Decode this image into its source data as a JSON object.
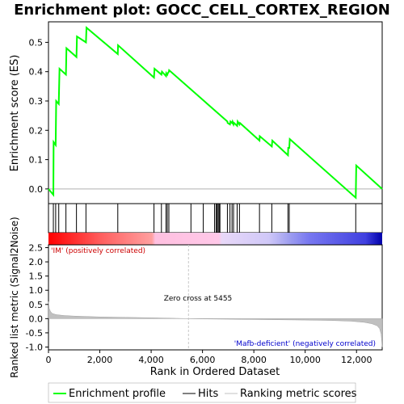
{
  "chart_data": {
    "type": "line",
    "title": "Enrichment plot: GOCC_CELL_CORTEX_REGION",
    "top_panel": {
      "ylabel": "Enrichment score (ES)",
      "ylim": [
        -0.05,
        0.57
      ],
      "yticks": [
        0.0,
        0.1,
        0.2,
        0.3,
        0.4,
        0.5
      ],
      "ytick_labels": [
        "0.0",
        "0.1",
        "0.2",
        "0.3",
        "0.4",
        "0.5"
      ],
      "series": [
        {
          "name": "Enrichment profile",
          "color": "#00ff00",
          "x": [
            0,
            190,
            200,
            280,
            300,
            400,
            430,
            680,
            700,
            1090,
            1110,
            1460,
            1480,
            2700,
            2710,
            4110,
            4130,
            4400,
            4420,
            4580,
            4590,
            4630,
            4650,
            4690,
            4700,
            6970,
            6980,
            7070,
            7090,
            7150,
            7170,
            7210,
            7230,
            7350,
            7370,
            7440,
            7460,
            8220,
            8230,
            8700,
            8720,
            9330,
            9340,
            9380,
            9400,
            11970,
            11990,
            13000
          ],
          "y": [
            0.0,
            -0.02,
            0.16,
            0.15,
            0.3,
            0.29,
            0.41,
            0.39,
            0.48,
            0.45,
            0.52,
            0.5,
            0.55,
            0.46,
            0.49,
            0.38,
            0.41,
            0.39,
            0.4,
            0.385,
            0.395,
            0.39,
            0.395,
            0.4,
            0.405,
            0.23,
            0.225,
            0.22,
            0.23,
            0.225,
            0.23,
            0.22,
            0.225,
            0.215,
            0.23,
            0.22,
            0.225,
            0.165,
            0.18,
            0.145,
            0.165,
            0.115,
            0.14,
            0.14,
            0.17,
            -0.03,
            0.08,
            0.0
          ]
        }
      ]
    },
    "hits": {
      "name": "Hits",
      "positions": [
        190,
        280,
        400,
        680,
        1090,
        1460,
        2700,
        4110,
        4400,
        4580,
        4630,
        4690,
        5550,
        6030,
        6470,
        6530,
        6570,
        6610,
        6650,
        6680,
        6970,
        7070,
        7150,
        7210,
        7350,
        7440,
        8220,
        8700,
        9330,
        9380,
        11970
      ]
    },
    "bottom_panel": {
      "ylabel": "Ranked list metric (Signal2Noise)",
      "xlabel": "Rank in Ordered Dataset",
      "ylim": [
        -1.1,
        2.6
      ],
      "yticks": [
        -1.0,
        -0.5,
        0.0,
        0.5,
        1.0,
        1.5,
        2.0,
        2.5
      ],
      "ytick_labels": [
        "-1.0",
        "-0.5",
        "0.0",
        "0.5",
        "1.0",
        "1.5",
        "2.0",
        "2.5"
      ],
      "xlim": [
        0,
        13000
      ],
      "xticks": [
        0,
        2000,
        4000,
        6000,
        8000,
        10000,
        12000
      ],
      "xtick_labels": [
        "0",
        "2,000",
        "4,000",
        "6,000",
        "8,000",
        "10,000",
        "12,000"
      ],
      "metric_profile": {
        "name": "Ranking metric scores",
        "x": [
          0,
          30,
          80,
          150,
          300,
          600,
          1000,
          2000,
          3000,
          4000,
          5000,
          5455,
          6000,
          7000,
          8000,
          9000,
          10000,
          11000,
          11800,
          12300,
          12600,
          12800,
          12900,
          12960,
          13000
        ],
        "y": [
          0.6,
          0.35,
          0.25,
          0.18,
          0.14,
          0.11,
          0.09,
          0.06,
          0.045,
          0.03,
          0.01,
          0.0,
          -0.01,
          -0.02,
          -0.03,
          -0.04,
          -0.05,
          -0.065,
          -0.09,
          -0.13,
          -0.18,
          -0.25,
          -0.35,
          -0.55,
          -1.0
        ]
      },
      "zero_cross_label": "Zero cross at 5455",
      "zero_cross": 5455,
      "positive_label": "'IM' (positively correlated)",
      "negative_label": "'Mafb-deficient' (negatively correlated)"
    },
    "legend": [
      "Enrichment profile",
      "Hits",
      "Ranking metric scores"
    ],
    "colors": {
      "es_line": "#00ff00",
      "hits": "#000000",
      "metric_fill": "#c0c0c0",
      "positive_text": "#cc0000",
      "negative_text": "#0000cc",
      "zero_line": "#cccccc"
    }
  }
}
